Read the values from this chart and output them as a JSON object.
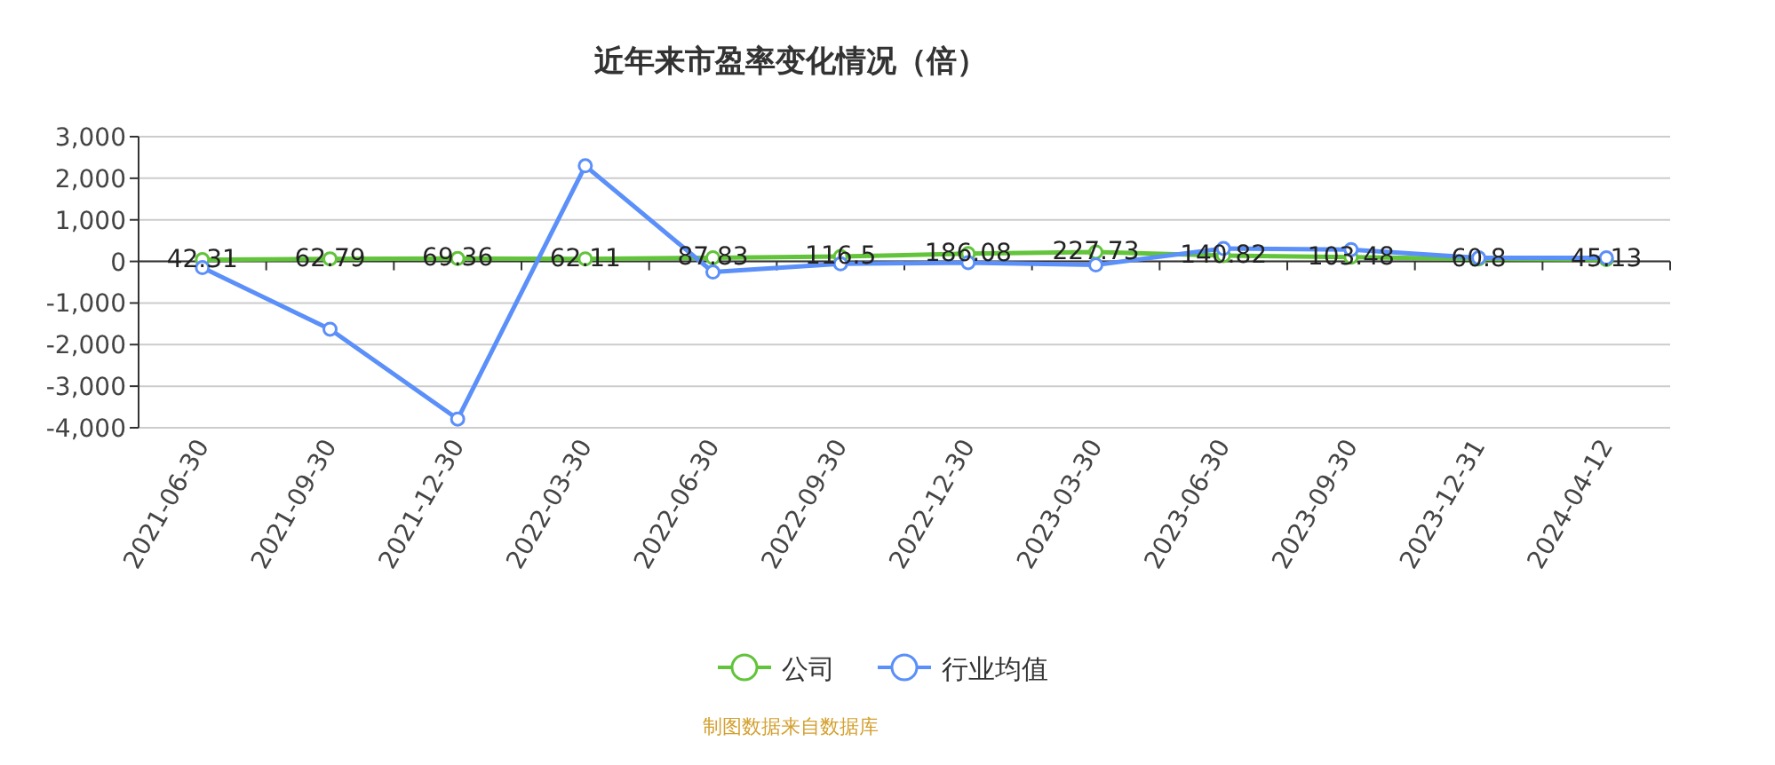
{
  "chart_data": {
    "type": "line",
    "title": "近年来市盈率变化情况（倍）",
    "categories": [
      "2021-06-30",
      "2021-09-30",
      "2021-12-30",
      "2022-03-30",
      "2022-06-30",
      "2022-09-30",
      "2022-12-30",
      "2023-03-30",
      "2023-06-30",
      "2023-09-30",
      "2023-12-31",
      "2024-04-12"
    ],
    "series": [
      {
        "name": "公司",
        "color": "#62c43a",
        "values": [
          42.31,
          62.79,
          69.36,
          62.11,
          87.83,
          116.5,
          186.08,
          227.73,
          140.82,
          103.48,
          60.8,
          45.13
        ],
        "value_labels": [
          "42.31",
          "62.79",
          "69.36",
          "62.11",
          "87.83",
          "116.5",
          "186.08",
          "227.73",
          "140.82",
          "103.48",
          "60.8",
          "45.13"
        ]
      },
      {
        "name": "行业均值",
        "color": "#5b8ff9",
        "values": [
          -150,
          -1630,
          -3790,
          2300,
          -255,
          -57,
          -30,
          -85,
          310,
          285,
          85,
          85
        ]
      }
    ],
    "ylim": [
      -4000,
      3000
    ],
    "yticks": [
      {
        "value": -4000,
        "label": "-4,000"
      },
      {
        "value": -3000,
        "label": "-3,000"
      },
      {
        "value": -2000,
        "label": "-2,000"
      },
      {
        "value": -1000,
        "label": "-1,000"
      },
      0,
      {
        "value": 1000,
        "label": "1,000"
      },
      {
        "value": 2000,
        "label": "2,000"
      },
      {
        "value": 3000,
        "label": "3,000"
      }
    ],
    "grid": "y",
    "legend": "bottom",
    "marker": "circle",
    "annotations": [
      "制图数据来自数据库"
    ]
  }
}
